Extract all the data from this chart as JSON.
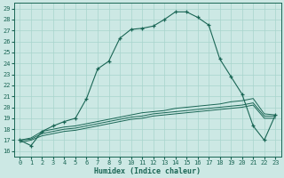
{
  "xlabel": "Humidex (Indice chaleur)",
  "bg_color": "#cce8e4",
  "grid_color": "#a8d4cc",
  "line_color": "#1a6655",
  "xlim": [
    -0.5,
    23.5
  ],
  "ylim": [
    15.5,
    29.5
  ],
  "xticks": [
    0,
    1,
    2,
    3,
    4,
    5,
    6,
    7,
    8,
    9,
    10,
    11,
    12,
    13,
    14,
    15,
    16,
    17,
    18,
    19,
    20,
    21,
    22,
    23
  ],
  "yticks": [
    16,
    17,
    18,
    19,
    20,
    21,
    22,
    23,
    24,
    25,
    26,
    27,
    28,
    29
  ],
  "humidex_curve": [
    17.0,
    16.5,
    17.8,
    18.3,
    18.7,
    19.0,
    20.8,
    23.5,
    24.2,
    26.3,
    27.1,
    27.2,
    27.4,
    28.0,
    28.7,
    28.7,
    28.2,
    27.5,
    24.4,
    22.8,
    21.2,
    18.3,
    17.0,
    19.3
  ],
  "line1": [
    17.0,
    17.2,
    17.8,
    18.0,
    18.2,
    18.3,
    18.5,
    18.7,
    18.9,
    19.1,
    19.3,
    19.5,
    19.6,
    19.7,
    19.9,
    20.0,
    20.1,
    20.2,
    20.3,
    20.5,
    20.6,
    20.8,
    19.4,
    19.3
  ],
  "line2": [
    17.0,
    17.1,
    17.6,
    17.8,
    18.0,
    18.1,
    18.3,
    18.5,
    18.7,
    18.9,
    19.1,
    19.2,
    19.4,
    19.5,
    19.6,
    19.7,
    19.8,
    19.9,
    20.0,
    20.1,
    20.2,
    20.4,
    19.2,
    19.2
  ],
  "line3": [
    16.8,
    17.0,
    17.4,
    17.6,
    17.8,
    17.9,
    18.1,
    18.3,
    18.5,
    18.7,
    18.9,
    19.0,
    19.2,
    19.3,
    19.4,
    19.5,
    19.6,
    19.7,
    19.8,
    19.9,
    20.0,
    20.2,
    19.0,
    19.0
  ]
}
